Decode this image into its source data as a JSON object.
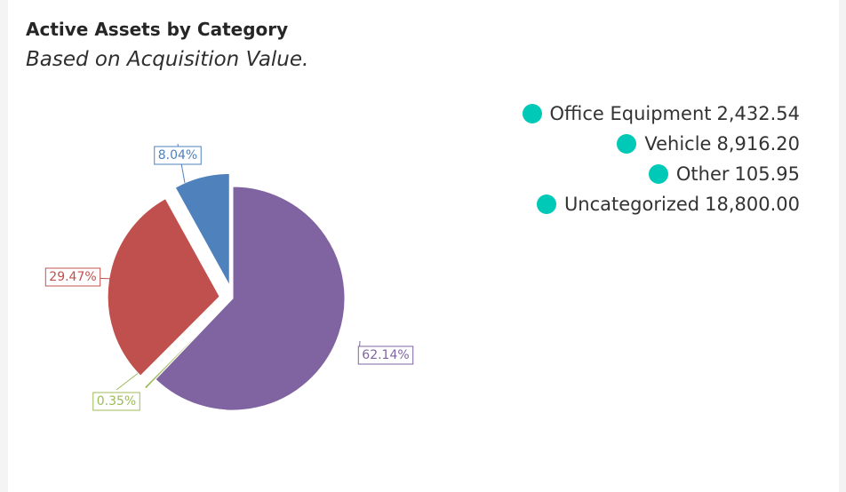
{
  "header": {
    "title": "Active Assets by Category",
    "subtitle": "Based on Acquisition Value."
  },
  "legend": {
    "dot_color": "#00c9b7",
    "items": [
      {
        "label": "Office Equipment",
        "value": "2,432.54"
      },
      {
        "label": "Vehicle",
        "value": "8,916.20"
      },
      {
        "label": "Other",
        "value": "105.95"
      },
      {
        "label": "Uncategorized",
        "value": "18,800.00"
      }
    ]
  },
  "chart_data": {
    "type": "pie",
    "title": "Active Assets by Category",
    "subtitle": "Based on Acquisition Value.",
    "slices": [
      {
        "label": "Uncategorized",
        "value": 18800.0,
        "percent_label": "62.14%",
        "color": "#8064a2",
        "exploded": false
      },
      {
        "label": "Other",
        "value": 105.95,
        "percent_label": "0.35%",
        "color": "#9bbb59",
        "exploded": true
      },
      {
        "label": "Vehicle",
        "value": 8916.2,
        "percent_label": "29.47%",
        "color": "#c0504d",
        "exploded": true
      },
      {
        "label": "Office Equipment",
        "value": 2432.54,
        "percent_label": "8.04%",
        "color": "#4f81bd",
        "exploded": true
      }
    ],
    "legend_position": "top-right"
  }
}
